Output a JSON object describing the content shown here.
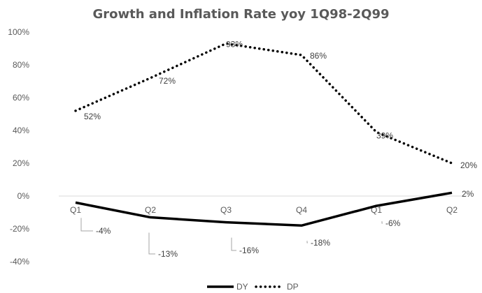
{
  "chart_data": {
    "type": "line",
    "title": "Growth and Inflation Rate yoy 1Q98-2Q99",
    "categories": [
      "Q1",
      "Q2",
      "Q3",
      "Q4",
      "Q1",
      "Q2"
    ],
    "ylim": [
      -40,
      100
    ],
    "yticks": [
      -40,
      -20,
      0,
      20,
      40,
      60,
      80,
      100
    ],
    "ytick_labels": [
      "-40%",
      "-20%",
      "0%",
      "20%",
      "40%",
      "60%",
      "80%",
      "100%"
    ],
    "grid": false,
    "legend_position": "bottom",
    "series": [
      {
        "name": "DY",
        "style": "solid",
        "color": "#000000",
        "values": [
          -4,
          -13,
          -16,
          -18,
          -6,
          2
        ],
        "labels": [
          "-4%",
          "-13%",
          "-16%",
          "-18%",
          "-6%",
          "2%"
        ]
      },
      {
        "name": "DP",
        "style": "dotted",
        "color": "#000000",
        "values": [
          52,
          72,
          93,
          86,
          39,
          20
        ],
        "labels": [
          "52%",
          "72%",
          "93%",
          "86%",
          "39%",
          "20%"
        ]
      }
    ]
  }
}
